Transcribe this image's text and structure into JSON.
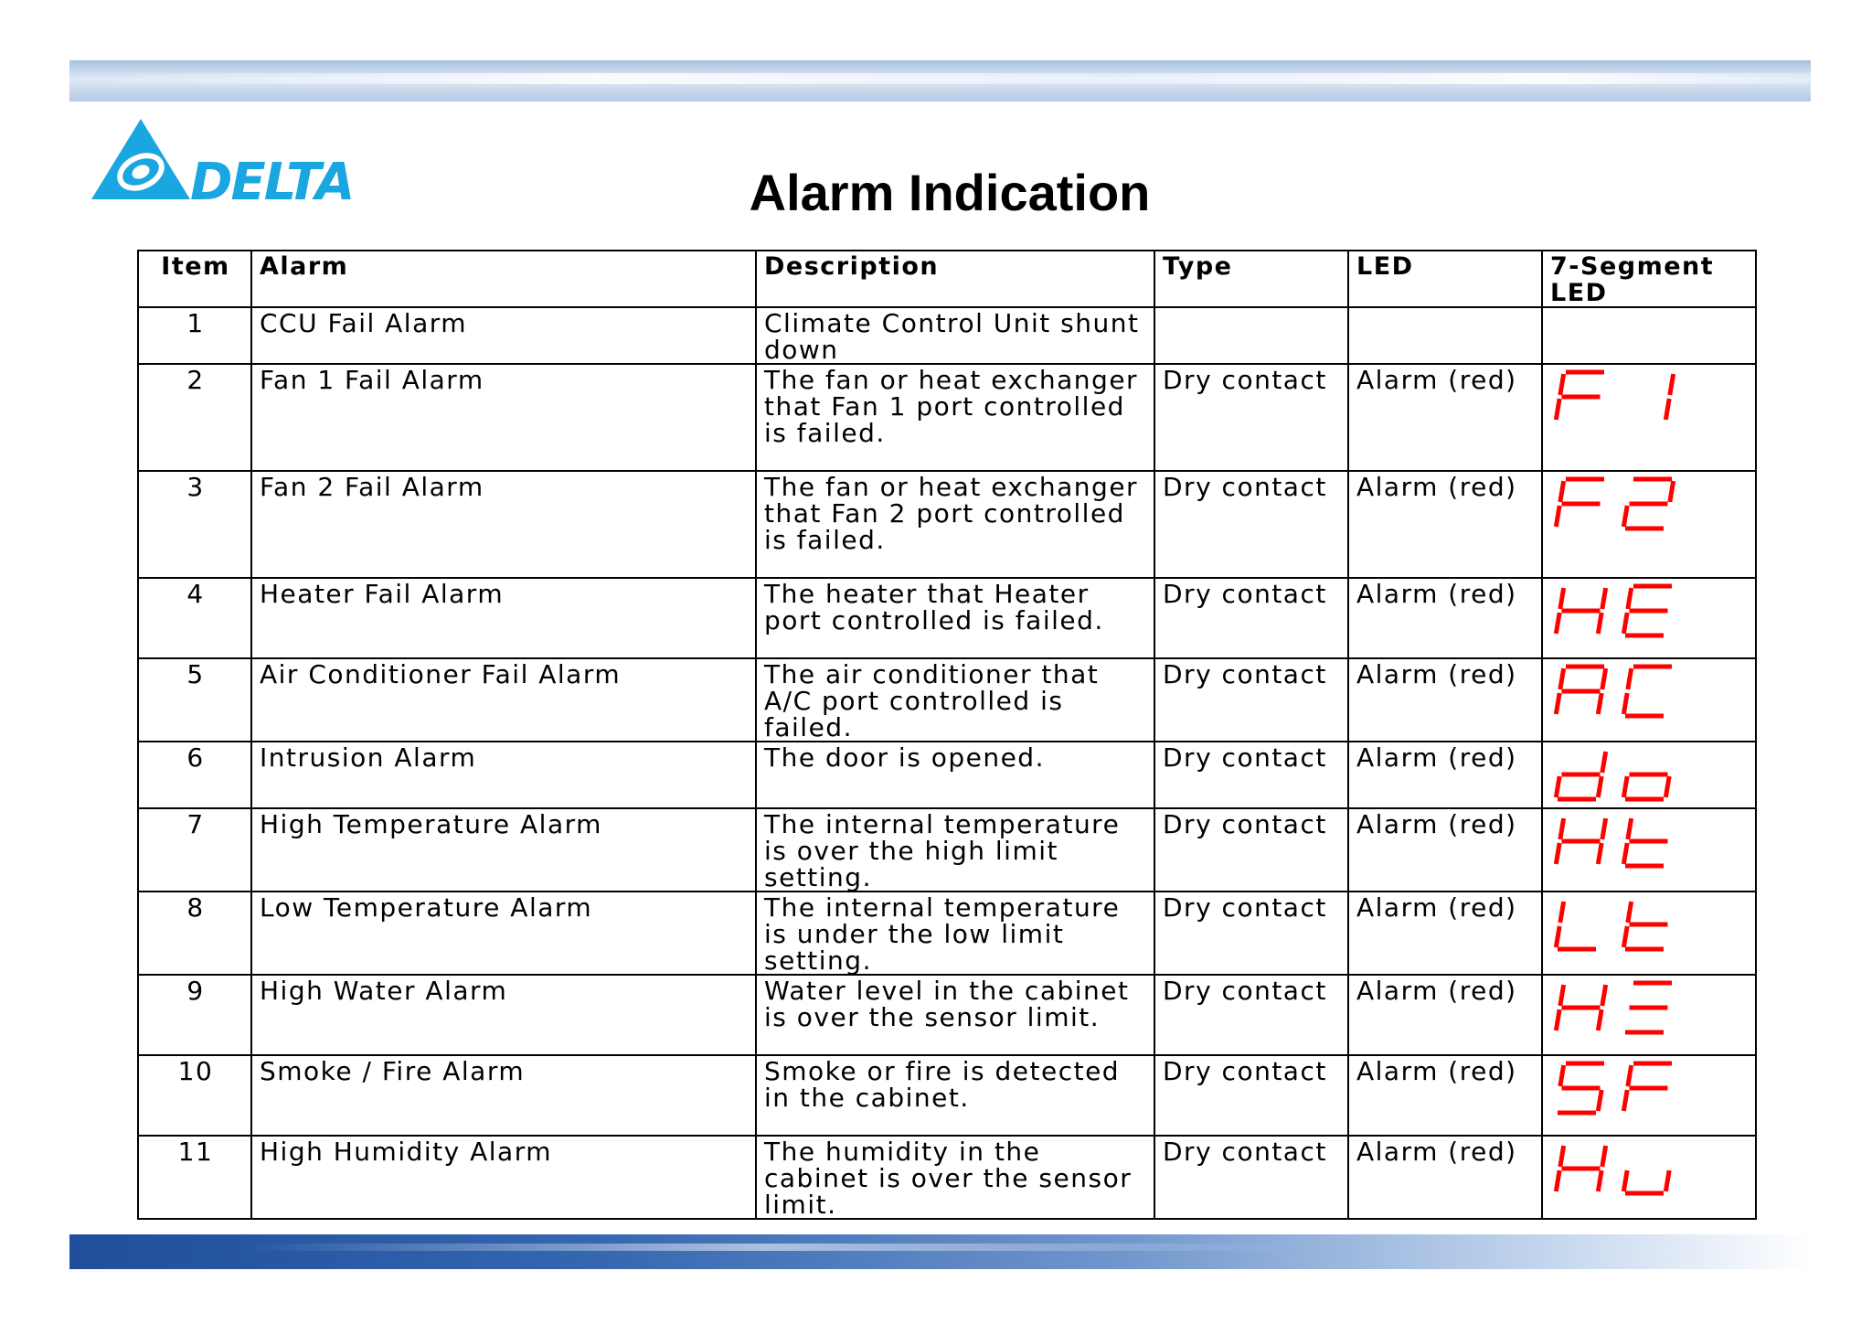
{
  "logo": {
    "text": "DELTA",
    "color": "#1aa6e0"
  },
  "title": "Alarm Indication",
  "table": {
    "headers": [
      "Item",
      "Alarm",
      "Description",
      "Type",
      "LED",
      "7-Segment LED"
    ],
    "rows": [
      {
        "item": "1",
        "alarm": "CCU Fail Alarm",
        "description": "Climate Control Unit shunt down",
        "type": "",
        "led": "",
        "segment": ""
      },
      {
        "item": "2",
        "alarm": "Fan 1 Fail Alarm",
        "description": "The fan or heat exchanger that Fan 1 port controlled is failed.",
        "type": "Dry contact",
        "led": "Alarm (red)",
        "segment": "F1"
      },
      {
        "item": "3",
        "alarm": "Fan 2 Fail Alarm",
        "description": "The fan or heat exchanger that Fan 2 port controlled is failed.",
        "type": "Dry contact",
        "led": "Alarm (red)",
        "segment": "F2"
      },
      {
        "item": "4",
        "alarm": "Heater Fail Alarm",
        "description": "The heater that Heater port controlled is failed.",
        "type": "Dry contact",
        "led": "Alarm (red)",
        "segment": "HE"
      },
      {
        "item": "5",
        "alarm": "Air Conditioner Fail Alarm",
        "description": "The air conditioner that A/C port controlled is failed.",
        "type": "Dry contact",
        "led": "Alarm (red)",
        "segment": "AC"
      },
      {
        "item": "6",
        "alarm": "Intrusion Alarm",
        "description": "The door is opened.",
        "type": "Dry contact",
        "led": "Alarm (red)",
        "segment": "do"
      },
      {
        "item": "7",
        "alarm": "High Temperature Alarm",
        "description": "The internal temperature is over the high limit setting.",
        "type": "Dry contact",
        "led": "Alarm (red)",
        "segment": "Ht"
      },
      {
        "item": "8",
        "alarm": "Low Temperature Alarm",
        "description": "The internal temperature is under the low limit setting.",
        "type": "Dry contact",
        "led": "Alarm (red)",
        "segment": "Lt"
      },
      {
        "item": "9",
        "alarm": "High Water Alarm",
        "description": "Water level in the cabinet is over the sensor limit.",
        "type": "Dry contact",
        "led": "Alarm (red)",
        "segment": "H≡"
      },
      {
        "item": "10",
        "alarm": "Smoke / Fire Alarm",
        "description": "Smoke or fire is detected in the cabinet.",
        "type": "Dry contact",
        "led": "Alarm (red)",
        "segment": "SF"
      },
      {
        "item": "11",
        "alarm": "High Humidity Alarm",
        "description": "The humidity in the cabinet is over the sensor limit.",
        "type": "Dry contact",
        "led": "Alarm (red)",
        "segment": "Hu"
      }
    ]
  },
  "segment_color": "#ff0000"
}
